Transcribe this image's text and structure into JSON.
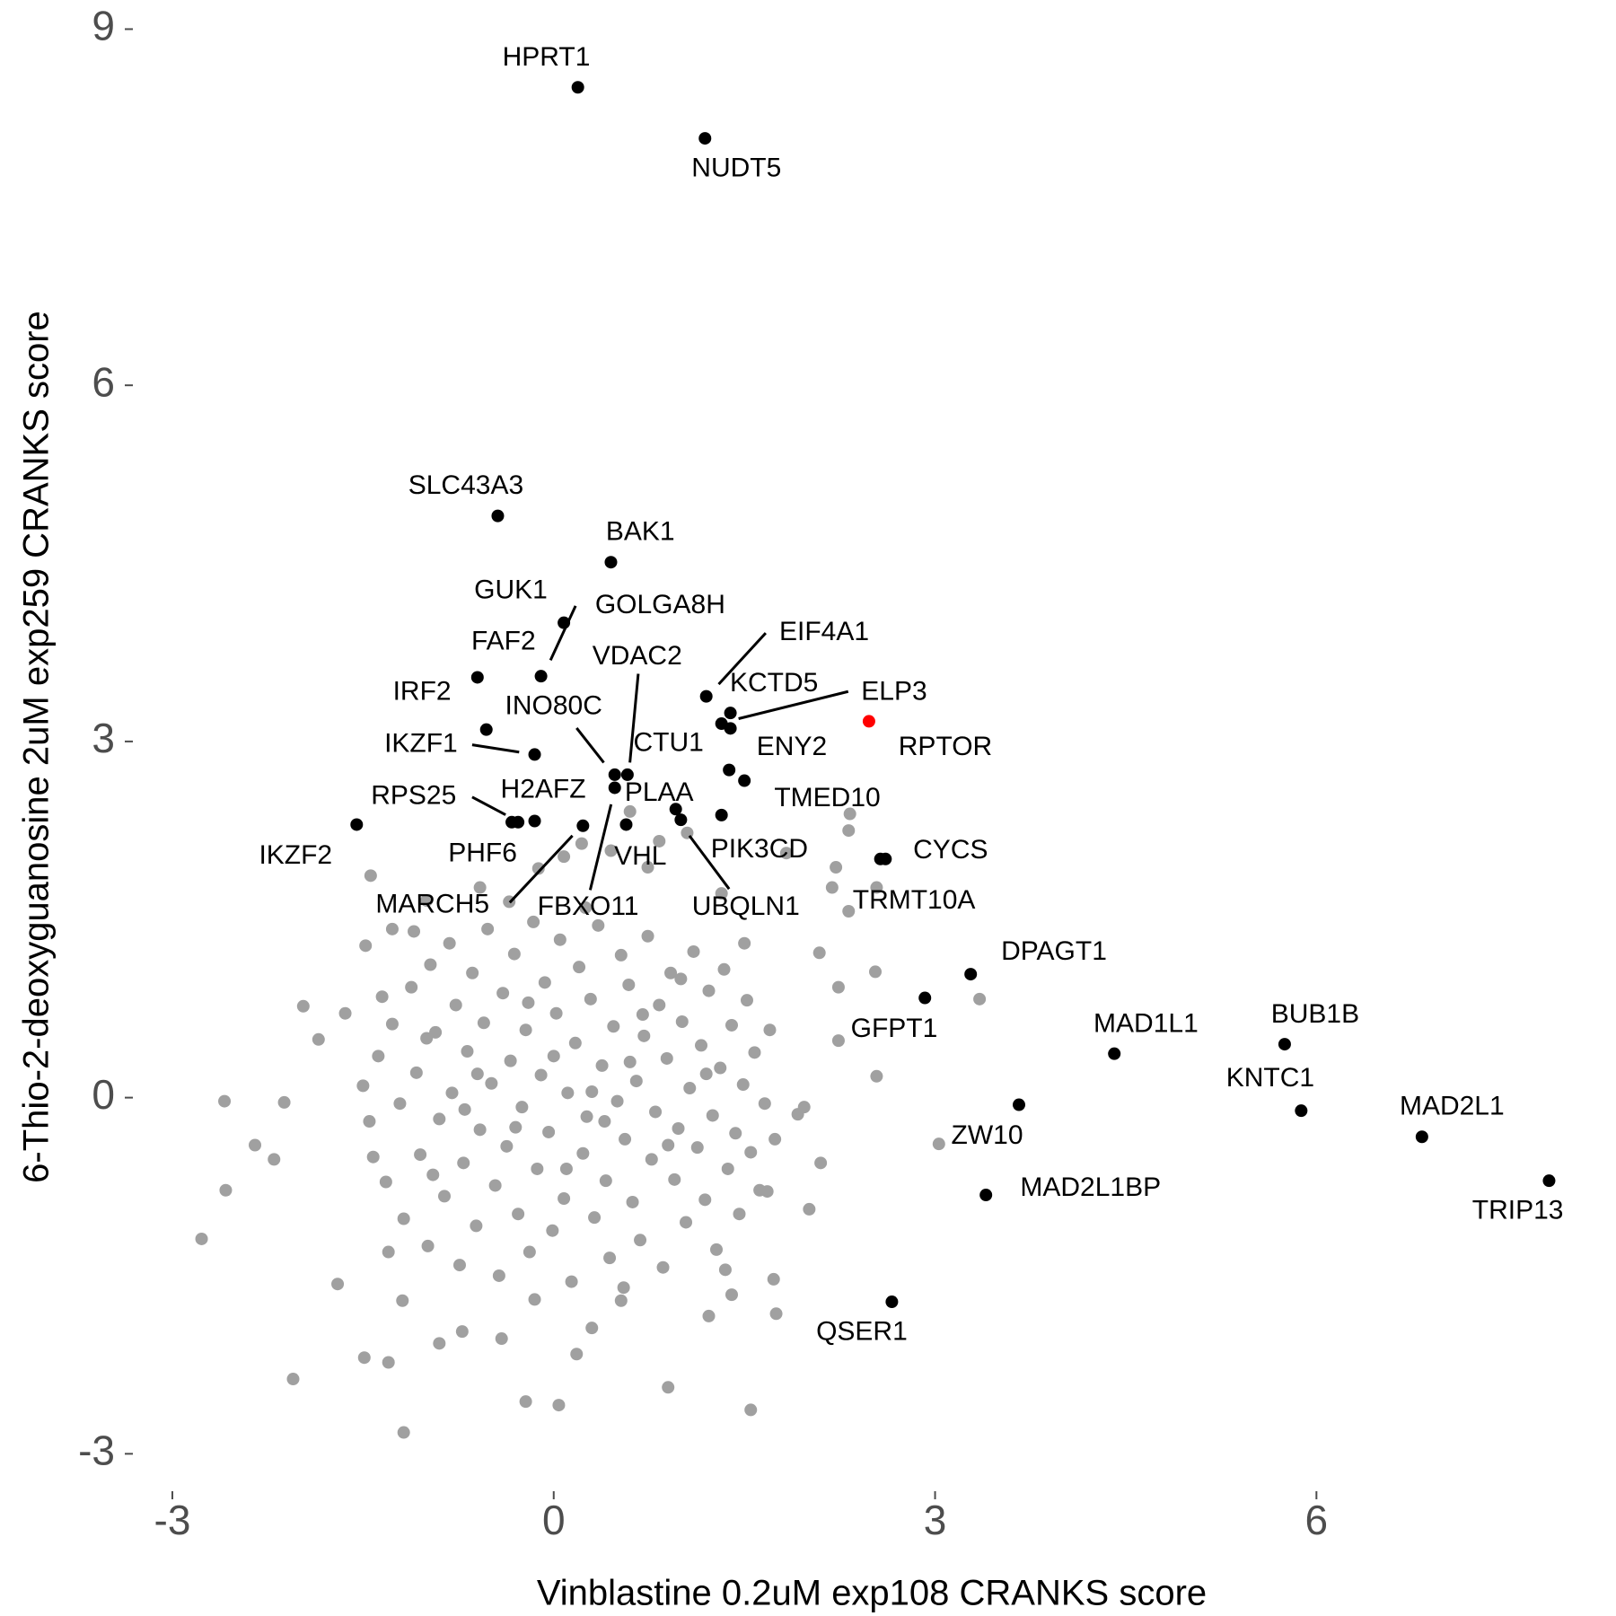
{
  "chart_data": {
    "type": "scatter",
    "xlabel": "Vinblastine 0.2uM exp108 CRANKS score",
    "ylabel": "6-Thio-2-deoxyguanosine 2uM exp259 CRANKS score",
    "xlim": [
      -3.3,
      8.3
    ],
    "ylim": [
      -3.3,
      9.2
    ],
    "xticks": [
      -3,
      0,
      3,
      6
    ],
    "yticks": [
      -3,
      0,
      3,
      6,
      9
    ],
    "grid": false,
    "background": {
      "color": "#a0a0a0",
      "x": [
        -2.59,
        -2.58,
        -2.77,
        -2.35,
        -2.05,
        -1.18,
        -1.49,
        -1.3,
        -0.22,
        0.04,
        0.9,
        1.55,
        1.75,
        0.18,
        0.53,
        -1.44,
        -1.97,
        -2.12,
        -2.2,
        2.1,
        2.01,
        1.97,
        2.24,
        2.54,
        2.53,
        3.35,
        3.03,
        2.32,
        2.54,
        2.19,
        2.32,
        2.33,
        2.22,
        1.83,
        0.6,
        0.83,
        1.05,
        2.09,
        2.24,
        -1.64,
        -1.7,
        -0.9,
        -0.72,
        -0.41,
        0.3,
        -1.19,
        1.4,
        1.22,
        1.73,
        1.68,
        1.92,
        0.22,
        0.08,
        -0.12,
        0.45,
        0.74,
        1.32,
        -0.58,
        -1.0,
        -1.27,
        -1.48,
        -1.85,
        -1.45,
        -1.38,
        -1.32,
        -1.27,
        -1.21,
        -1.18,
        -1.12,
        -1.08,
        -1.05,
        -0.99,
        -0.97,
        -0.93,
        -0.9,
        -0.86,
        -0.82,
        -0.8,
        -0.77,
        -0.74,
        -0.71,
        -0.68,
        -0.64,
        -0.61,
        -0.58,
        -0.55,
        -0.52,
        -0.49,
        -0.46,
        -0.43,
        -0.4,
        -0.37,
        -0.34,
        -0.31,
        -0.28,
        -0.25,
        -0.22,
        -0.19,
        -0.16,
        -0.13,
        -0.1,
        -0.07,
        -0.04,
        -0.01,
        0.02,
        0.05,
        0.08,
        0.11,
        0.14,
        0.17,
        0.2,
        0.23,
        0.26,
        0.29,
        0.32,
        0.35,
        0.38,
        0.41,
        0.44,
        0.47,
        0.5,
        0.53,
        0.56,
        0.59,
        0.62,
        0.65,
        0.68,
        0.71,
        0.74,
        0.77,
        0.8,
        0.83,
        0.86,
        0.89,
        0.92,
        0.95,
        0.98,
        1.01,
        1.04,
        1.07,
        1.1,
        1.13,
        1.16,
        1.19,
        1.22,
        1.25,
        1.28,
        1.31,
        1.34,
        1.37,
        1.4,
        1.43,
        1.46,
        1.49,
        1.52,
        1.55,
        1.58,
        1.62,
        1.66,
        1.7,
        1.74,
        -1.5,
        -1.42,
        -1.35,
        -0.95,
        -0.6,
        -0.3,
        0.0,
        0.3,
        0.6,
        0.9,
        1.2,
        -0.2,
        0.4,
        -0.7,
        0.1,
        0.7,
        1.0,
        -1.0,
        0.25,
        -0.35,
        0.55,
        -0.15,
        1.5,
        -1.3,
        -1.1,
        1.35
      ],
      "values": [
        -0.03,
        -0.78,
        -1.19,
        -0.4,
        -2.37,
        -2.82,
        -2.19,
        -2.23,
        -2.56,
        -2.59,
        -2.44,
        -2.63,
        -1.82,
        -2.16,
        -1.71,
        1.87,
        0.77,
        -0.04,
        -0.52,
        -0.55,
        -0.94,
        -0.08,
        0.48,
        0.18,
        1.06,
        0.83,
        -0.39,
        1.57,
        1.77,
        1.77,
        2.25,
        2.39,
        1.94,
        2.06,
        2.41,
        2.16,
        2.23,
        1.22,
        0.93,
        0.71,
        -1.57,
        -2.07,
        -1.97,
        -2.03,
        -1.94,
        -1.71,
        -1.66,
        -1.84,
        -1.53,
        -0.79,
        -0.14,
        2.14,
        2.03,
        1.93,
        2.08,
        1.94,
        1.72,
        1.77,
        1.66,
        1.42,
        1.28,
        0.49,
        -0.2,
        0.35,
        -0.71,
        0.62,
        -0.05,
        -1.02,
        0.93,
        0.21,
        -0.48,
        -1.25,
        1.12,
        0.55,
        -0.18,
        -0.83,
        1.3,
        0.04,
        0.78,
        -1.41,
        -0.55,
        0.39,
        1.05,
        -1.08,
        -0.27,
        0.63,
        1.42,
        0.12,
        -0.74,
        -1.5,
        0.88,
        -0.41,
        0.31,
        1.21,
        -0.98,
        -0.08,
        0.57,
        -1.3,
        1.48,
        -0.6,
        0.19,
        0.97,
        -0.29,
        -1.12,
        0.71,
        1.33,
        -0.85,
        0.04,
        -1.55,
        0.46,
        1.1,
        -0.47,
        -0.16,
        0.83,
        -1.01,
        1.45,
        0.27,
        -0.7,
        -1.35,
        0.6,
        -0.03,
        1.2,
        -0.35,
        0.95,
        -0.88,
        0.14,
        -1.2,
        0.52,
        1.36,
        -0.52,
        -0.12,
        0.78,
        -1.43,
        0.33,
        1.05,
        -0.69,
        -0.26,
        0.64,
        -1.05,
        0.08,
        1.23,
        -0.42,
        0.44,
        -0.86,
        0.9,
        -0.15,
        -1.28,
        0.25,
        1.08,
        -0.6,
        0.61,
        -0.3,
        -0.98,
        0.11,
        0.82,
        -0.46,
        0.38,
        -0.78,
        -0.05,
        0.57,
        -0.35,
        0.1,
        -0.5,
        0.85,
        -0.65,
        0.2,
        -0.25,
        0.35,
        0.05,
        0.3,
        -0.4,
        0.2,
        0.8,
        -0.2,
        -0.1,
        -0.6,
        0.7,
        1.0,
        0.5,
        1.6,
        1.65,
        -1.6,
        -1.7,
        1.3,
        -1.3,
        1.4,
        -1.45
      ]
    },
    "genes": {
      "color": "#000000",
      "labels": [
        "HPRT1",
        "NUDT5",
        "SLC43A3",
        "BAK1",
        "GUK1",
        "GOLGA8H",
        "IRF2",
        "FAF2",
        "IKZF1",
        "INO80C",
        "VDAC2",
        "FBXO11",
        "EIF4A1",
        "KCTD5",
        "ELP3",
        "ENY2",
        "CTU1",
        "TMED10",
        "IKZF2",
        "RPS25",
        "PHF6",
        "H2AFZ",
        "PLAA",
        "UBQLN1",
        "PIK3CD",
        "VHL",
        "MARCH5",
        "CYCS",
        "TRMT10A",
        "DPAGT1",
        "GFPT1",
        "MAD1L1",
        "BUB1B",
        "KNTC1",
        "MAD2L1",
        "TRIP13",
        "ZW10",
        "MAD2L1BP",
        "QSER1"
      ],
      "x": [
        0.19,
        1.19,
        -0.44,
        0.45,
        0.08,
        -0.1,
        -0.6,
        -0.53,
        -0.15,
        0.48,
        0.58,
        0.48,
        1.2,
        1.39,
        1.32,
        1.39,
        1.38,
        1.5,
        -1.55,
        -0.33,
        -0.28,
        -0.15,
        0.96,
        1.0,
        1.32,
        0.57,
        0.23,
        2.61,
        2.57,
        3.28,
        2.92,
        4.41,
        5.75,
        5.88,
        6.83,
        7.83,
        3.66,
        3.4,
        2.66
      ],
      "values": [
        8.51,
        8.08,
        4.9,
        4.51,
        4.0,
        3.55,
        3.54,
        3.1,
        2.89,
        2.72,
        2.72,
        2.61,
        3.38,
        3.24,
        3.15,
        3.11,
        2.76,
        2.67,
        2.3,
        2.32,
        2.32,
        2.33,
        2.43,
        2.34,
        2.38,
        2.3,
        2.29,
        2.01,
        2.01,
        1.04,
        0.84,
        0.37,
        0.45,
        -0.11,
        -0.33,
        -0.7,
        -0.06,
        -0.82,
        -1.72
      ]
    },
    "highlight": {
      "color": "#ff0000",
      "labels": [
        "RPTOR"
      ],
      "x": [
        2.48
      ],
      "values": [
        3.17
      ]
    }
  }
}
